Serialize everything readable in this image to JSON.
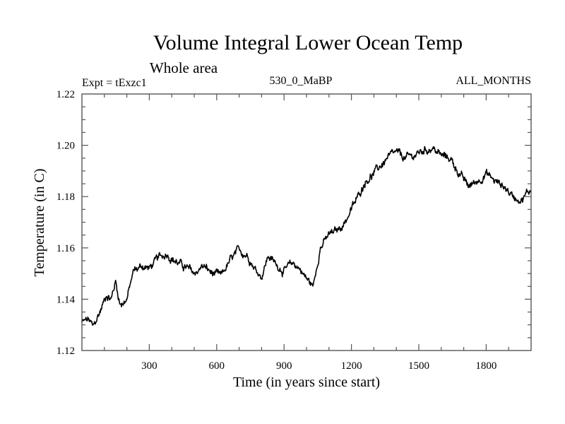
{
  "chart_data": {
    "type": "line",
    "title": "Volume Integral Lower Ocean Temp",
    "subtitle": "Whole area",
    "annotations": {
      "left": "Expt = tExzc1",
      "center": "530_0_MaBP",
      "right": "ALL_MONTHS"
    },
    "xlabel": "Time (in years since start)",
    "ylabel": "Temperature (in C)",
    "xlim": [
      0,
      2000
    ],
    "ylim": [
      1.12,
      1.22
    ],
    "xticks": [
      300,
      600,
      900,
      1200,
      1500,
      1800
    ],
    "xtick_labels": [
      "300",
      "600",
      "900",
      "1200",
      "1500",
      "1800"
    ],
    "yticks": [
      1.12,
      1.14,
      1.16,
      1.18,
      1.2,
      1.22
    ],
    "ytick_labels": [
      "1.12",
      "1.14",
      "1.16",
      "1.18",
      "1.20",
      "1.22"
    ],
    "grid": false,
    "legend": "none",
    "series": [
      {
        "name": "Volume integral lower ocean temperature",
        "color": "#000000",
        "x": [
          0,
          30,
          50,
          80,
          110,
          130,
          150,
          170,
          200,
          230,
          270,
          300,
          340,
          380,
          400,
          430,
          470,
          500,
          540,
          580,
          620,
          660,
          700,
          740,
          770,
          800,
          830,
          860,
          900,
          940,
          970,
          1000,
          1030,
          1060,
          1100,
          1140,
          1170,
          1200,
          1230,
          1260,
          1300,
          1330,
          1360,
          1400,
          1440,
          1480,
          1520,
          1560,
          1600,
          1640,
          1680,
          1720,
          1760,
          1800,
          1840,
          1880,
          1920,
          1960,
          2000
        ],
        "y": [
          1.131,
          1.132,
          1.129,
          1.135,
          1.142,
          1.14,
          1.147,
          1.138,
          1.14,
          1.151,
          1.153,
          1.152,
          1.156,
          1.158,
          1.156,
          1.154,
          1.152,
          1.15,
          1.153,
          1.15,
          1.149,
          1.155,
          1.159,
          1.157,
          1.152,
          1.149,
          1.157,
          1.154,
          1.151,
          1.154,
          1.152,
          1.148,
          1.145,
          1.16,
          1.165,
          1.167,
          1.17,
          1.175,
          1.18,
          1.186,
          1.189,
          1.192,
          1.195,
          1.197,
          1.195,
          1.196,
          1.198,
          1.199,
          1.196,
          1.195,
          1.189,
          1.184,
          1.186,
          1.189,
          1.186,
          1.184,
          1.18,
          1.179,
          1.183
        ]
      }
    ]
  }
}
